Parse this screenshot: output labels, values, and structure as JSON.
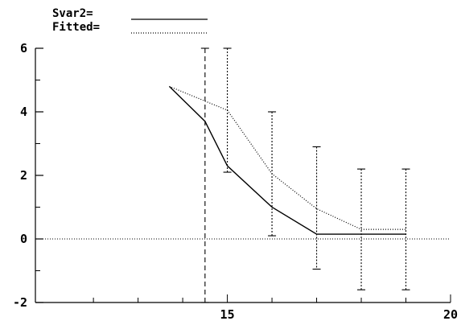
{
  "chart_data": {
    "type": "line",
    "legend": {
      "placement": "top-left",
      "entries": [
        {
          "label": "Svar2=",
          "line_style": "solid"
        },
        {
          "label": "Fitted=",
          "line_style": "dotted"
        }
      ]
    },
    "x_ticks": [
      {
        "value": 15,
        "label": "15"
      },
      {
        "value": 20,
        "label": "20"
      }
    ],
    "y_ticks": [
      {
        "value": 6,
        "label": "6"
      },
      {
        "value": 4,
        "label": "4"
      },
      {
        "value": 2,
        "label": "2"
      },
      {
        "value": 0,
        "label": "0"
      },
      {
        "value": -2,
        "label": "-2"
      }
    ],
    "xlim": [
      10.7,
      20
    ],
    "ylim": [
      -2,
      6
    ],
    "grid": false,
    "reference_line": {
      "y": 0,
      "style": "dotted"
    },
    "series": [
      {
        "name": "Svar2=",
        "style": "solid",
        "x": [
          13.7,
          14.5,
          15.0,
          16.0,
          17.0,
          18.0,
          19.0
        ],
        "y": [
          4.8,
          3.7,
          2.3,
          1.0,
          0.15,
          0.15,
          0.15
        ]
      },
      {
        "name": "Fitted=",
        "style": "dotted",
        "x": [
          13.7,
          15.0,
          16.0,
          17.0,
          18.0,
          19.0
        ],
        "y": [
          4.8,
          4.05,
          2.05,
          0.95,
          0.3,
          0.3
        ]
      }
    ],
    "error_bars": [
      {
        "x": 14.5,
        "low": -2.0,
        "high": 6.0,
        "style": "dashed"
      },
      {
        "x": 15.0,
        "low": 2.1,
        "high": 6.0,
        "style": "dotted"
      },
      {
        "x": 16.0,
        "low": 0.1,
        "high": 4.0,
        "style": "dotted"
      },
      {
        "x": 17.0,
        "low": -0.95,
        "high": 2.9,
        "style": "dotted"
      },
      {
        "x": 18.0,
        "low": -1.6,
        "high": 2.2,
        "style": "dotted"
      },
      {
        "x": 19.0,
        "low": -1.6,
        "high": 2.2,
        "style": "dotted"
      }
    ]
  }
}
